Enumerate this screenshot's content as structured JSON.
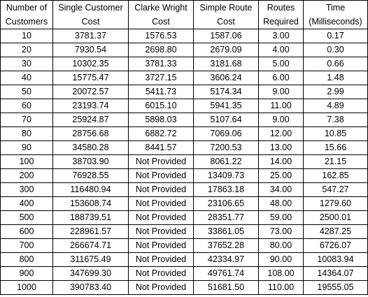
{
  "table": {
    "headers": [
      [
        "Number of",
        "Customers"
      ],
      [
        "Single Customer",
        "Cost"
      ],
      [
        "Clarke Wright",
        "Cost"
      ],
      [
        "Simple Route",
        "Cost"
      ],
      [
        "Routes",
        "Required"
      ],
      [
        "Time",
        "(Milliseconds)"
      ]
    ],
    "rows": [
      [
        "10",
        "3781.37",
        "1576.53",
        "1587.06",
        "3.00",
        "0.17"
      ],
      [
        "20",
        "7930.54",
        "2698.80",
        "2679.09",
        "4.00",
        "0.30"
      ],
      [
        "30",
        "10302.35",
        "3781.33",
        "3181.68",
        "5.00",
        "0.66"
      ],
      [
        "40",
        "15775.47",
        "3727.15",
        "3606.24",
        "6.00",
        "1.48"
      ],
      [
        "50",
        "20072.57",
        "5411.73",
        "5174.34",
        "9.00",
        "2.99"
      ],
      [
        "60",
        "23193.74",
        "6015.10",
        "5941.35",
        "11.00",
        "4.89"
      ],
      [
        "70",
        "25924.87",
        "5898.03",
        "5107.64",
        "9.00",
        "7.38"
      ],
      [
        "80",
        "28756.68",
        "6882.72",
        "7069.06",
        "12.00",
        "10.85"
      ],
      [
        "90",
        "34580.28",
        "8441.57",
        "7200.53",
        "13.00",
        "15.66"
      ],
      [
        "100",
        "38703.90",
        "Not Provided",
        "8061.22",
        "14.00",
        "21.15"
      ],
      [
        "200",
        "76928.55",
        "Not Provided",
        "13409.73",
        "25.00",
        "162.85"
      ],
      [
        "300",
        "116480.94",
        "Not Provided",
        "17863.18",
        "34.00",
        "547.27"
      ],
      [
        "400",
        "153608.74",
        "Not Provided",
        "23106.65",
        "48.00",
        "1279.60"
      ],
      [
        "500",
        "188739.51",
        "Not Provided",
        "28351.77",
        "59.00",
        "2500.01"
      ],
      [
        "600",
        "228961.57",
        "Not Provided",
        "33861.05",
        "73.00",
        "4287.25"
      ],
      [
        "700",
        "266674.71",
        "Not Provided",
        "37652.28",
        "80.00",
        "6726.07"
      ],
      [
        "800",
        "311675.49",
        "Not Provided",
        "42334.97",
        "90.00",
        "10083.94"
      ],
      [
        "900",
        "347699.30",
        "Not Provided",
        "49761.74",
        "108.00",
        "14364.07"
      ],
      [
        "1000",
        "390783.40",
        "Not Provided",
        "51681.50",
        "110.00",
        "19555.05"
      ]
    ]
  }
}
